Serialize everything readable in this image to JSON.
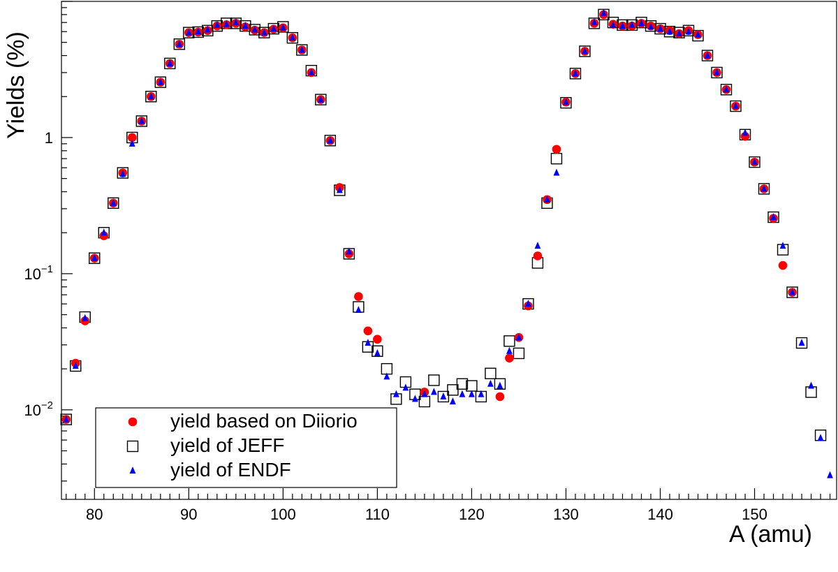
{
  "chart_data": {
    "type": "scatter",
    "title": "",
    "xlabel": "A (amu)",
    "ylabel": "Yields (%)",
    "xlim": [
      76.5,
      158.7
    ],
    "ylim": [
      0.0022,
      10
    ],
    "yscale": "log",
    "x_ticks": [
      80,
      90,
      100,
      110,
      120,
      130,
      140,
      150
    ],
    "y_ticks": [
      {
        "value": 0.01,
        "base": "10",
        "exp": "−2"
      },
      {
        "value": 0.1,
        "base": "10",
        "exp": "−1"
      },
      {
        "value": 1,
        "base": "1",
        "exp": ""
      }
    ],
    "grid": false,
    "legend_position": "bottom-left",
    "series": [
      {
        "name": "yield based on Diiorio",
        "marker": "circle",
        "color": "#ff0000",
        "points": [
          [
            77,
            0.0085
          ],
          [
            78,
            0.022
          ],
          [
            79,
            0.045
          ],
          [
            80,
            0.13
          ],
          [
            81,
            0.19
          ],
          [
            82,
            0.33
          ],
          [
            83,
            0.55
          ],
          [
            84,
            1.0
          ],
          [
            85,
            1.32
          ],
          [
            86,
            2.0
          ],
          [
            87,
            2.55
          ],
          [
            88,
            3.5
          ],
          [
            89,
            4.85
          ],
          [
            90,
            5.9
          ],
          [
            91,
            5.95
          ],
          [
            92,
            6.1
          ],
          [
            93,
            6.6
          ],
          [
            94,
            6.75
          ],
          [
            95,
            6.9
          ],
          [
            96,
            6.5
          ],
          [
            97,
            6.15
          ],
          [
            98,
            5.9
          ],
          [
            99,
            6.25
          ],
          [
            100,
            6.4
          ],
          [
            101,
            5.4
          ],
          [
            102,
            4.4
          ],
          [
            103,
            3.0
          ],
          [
            104,
            1.9
          ],
          [
            105,
            0.95
          ],
          [
            106,
            0.43
          ],
          [
            107,
            0.14
          ],
          [
            108,
            0.068
          ],
          [
            109,
            0.038
          ],
          [
            110,
            0.033
          ],
          [
            115,
            0.0135
          ],
          [
            123,
            0.0125
          ],
          [
            124,
            0.024
          ],
          [
            125,
            0.034
          ],
          [
            126,
            0.058
          ],
          [
            127,
            0.135
          ],
          [
            128,
            0.35
          ],
          [
            129,
            0.82
          ],
          [
            130,
            1.82
          ],
          [
            131,
            2.95
          ],
          [
            132,
            4.3
          ],
          [
            133,
            6.9
          ],
          [
            134,
            8.0
          ],
          [
            135,
            6.8
          ],
          [
            136,
            6.6
          ],
          [
            137,
            6.6
          ],
          [
            138,
            6.9
          ],
          [
            139,
            6.6
          ],
          [
            140,
            6.3
          ],
          [
            141,
            6.1
          ],
          [
            142,
            5.8
          ],
          [
            143,
            6.1
          ],
          [
            144,
            5.7
          ],
          [
            145,
            4.0
          ],
          [
            146,
            3.0
          ],
          [
            147,
            2.25
          ],
          [
            148,
            1.7
          ],
          [
            149,
            1.02
          ],
          [
            150,
            0.66
          ],
          [
            151,
            0.42
          ],
          [
            152,
            0.255
          ],
          [
            153,
            0.115
          ],
          [
            154,
            0.073
          ]
        ]
      },
      {
        "name": "yield of JEFF",
        "marker": "open-square",
        "color": "#000000",
        "points": [
          [
            77,
            0.0085
          ],
          [
            78,
            0.021
          ],
          [
            79,
            0.048
          ],
          [
            80,
            0.13
          ],
          [
            81,
            0.2
          ],
          [
            82,
            0.33
          ],
          [
            83,
            0.55
          ],
          [
            84,
            1.0
          ],
          [
            85,
            1.32
          ],
          [
            86,
            2.0
          ],
          [
            87,
            2.55
          ],
          [
            88,
            3.5
          ],
          [
            89,
            4.85
          ],
          [
            90,
            5.9
          ],
          [
            91,
            5.95
          ],
          [
            92,
            6.1
          ],
          [
            93,
            6.6
          ],
          [
            94,
            6.9
          ],
          [
            95,
            6.9
          ],
          [
            96,
            6.6
          ],
          [
            97,
            6.2
          ],
          [
            98,
            5.9
          ],
          [
            99,
            6.3
          ],
          [
            100,
            6.5
          ],
          [
            101,
            5.4
          ],
          [
            102,
            4.4
          ],
          [
            103,
            3.1
          ],
          [
            104,
            1.9
          ],
          [
            105,
            0.95
          ],
          [
            106,
            0.41
          ],
          [
            107,
            0.14
          ],
          [
            108,
            0.057
          ],
          [
            109,
            0.029
          ],
          [
            110,
            0.027
          ],
          [
            111,
            0.02
          ],
          [
            112,
            0.012
          ],
          [
            113,
            0.016
          ],
          [
            114,
            0.013
          ],
          [
            115,
            0.0115
          ],
          [
            116,
            0.0165
          ],
          [
            117,
            0.0125
          ],
          [
            118,
            0.014
          ],
          [
            119,
            0.0155
          ],
          [
            120,
            0.015
          ],
          [
            121,
            0.0125
          ],
          [
            122,
            0.0185
          ],
          [
            123,
            0.0155
          ],
          [
            124,
            0.032
          ],
          [
            125,
            0.026
          ],
          [
            126,
            0.06
          ],
          [
            127,
            0.12
          ],
          [
            128,
            0.33
          ],
          [
            129,
            0.7
          ],
          [
            130,
            1.8
          ],
          [
            131,
            2.95
          ],
          [
            132,
            4.3
          ],
          [
            133,
            6.9
          ],
          [
            134,
            8.0
          ],
          [
            135,
            7.0
          ],
          [
            136,
            6.7
          ],
          [
            137,
            6.7
          ],
          [
            138,
            7.0
          ],
          [
            139,
            6.6
          ],
          [
            140,
            6.3
          ],
          [
            141,
            6.0
          ],
          [
            142,
            5.9
          ],
          [
            143,
            6.1
          ],
          [
            144,
            5.6
          ],
          [
            145,
            4.0
          ],
          [
            146,
            3.0
          ],
          [
            147,
            2.25
          ],
          [
            148,
            1.7
          ],
          [
            149,
            1.05
          ],
          [
            150,
            0.66
          ],
          [
            151,
            0.42
          ],
          [
            152,
            0.26
          ],
          [
            153,
            0.15
          ],
          [
            154,
            0.073
          ],
          [
            155,
            0.031
          ],
          [
            156,
            0.0135
          ],
          [
            157,
            0.0065
          ]
        ]
      },
      {
        "name": "yield of ENDF",
        "marker": "triangle",
        "color": "#0000ff",
        "points": [
          [
            77,
            0.0085
          ],
          [
            78,
            0.021
          ],
          [
            79,
            0.047
          ],
          [
            80,
            0.13
          ],
          [
            81,
            0.2
          ],
          [
            82,
            0.33
          ],
          [
            83,
            0.54
          ],
          [
            84,
            0.9
          ],
          [
            85,
            1.32
          ],
          [
            86,
            2.0
          ],
          [
            87,
            2.55
          ],
          [
            88,
            3.5
          ],
          [
            89,
            4.85
          ],
          [
            90,
            5.9
          ],
          [
            91,
            6.0
          ],
          [
            92,
            6.2
          ],
          [
            93,
            6.7
          ],
          [
            94,
            6.8
          ],
          [
            95,
            7.0
          ],
          [
            96,
            6.6
          ],
          [
            97,
            6.2
          ],
          [
            98,
            5.9
          ],
          [
            99,
            6.3
          ],
          [
            100,
            6.4
          ],
          [
            101,
            5.4
          ],
          [
            102,
            4.4
          ],
          [
            103,
            3.0
          ],
          [
            104,
            1.9
          ],
          [
            105,
            0.95
          ],
          [
            106,
            0.41
          ],
          [
            107,
            0.145
          ],
          [
            108,
            0.054
          ],
          [
            109,
            0.031
          ],
          [
            110,
            0.026
          ],
          [
            111,
            0.0175
          ],
          [
            112,
            0.013
          ],
          [
            113,
            0.0145
          ],
          [
            114,
            0.012
          ],
          [
            115,
            0.013
          ],
          [
            116,
            0.0135
          ],
          [
            117,
            0.0125
          ],
          [
            118,
            0.0115
          ],
          [
            119,
            0.013
          ],
          [
            120,
            0.013
          ],
          [
            121,
            0.013
          ],
          [
            122,
            0.0155
          ],
          [
            123,
            0.015
          ],
          [
            124,
            0.027
          ],
          [
            125,
            0.034
          ],
          [
            126,
            0.06
          ],
          [
            127,
            0.16
          ],
          [
            128,
            0.35
          ],
          [
            129,
            0.55
          ],
          [
            130,
            1.82
          ],
          [
            131,
            2.95
          ],
          [
            132,
            4.3
          ],
          [
            133,
            7.0
          ],
          [
            134,
            8.2
          ],
          [
            135,
            6.7
          ],
          [
            136,
            6.6
          ],
          [
            137,
            6.7
          ],
          [
            138,
            6.9
          ],
          [
            139,
            6.5
          ],
          [
            140,
            6.3
          ],
          [
            141,
            6.0
          ],
          [
            142,
            5.8
          ],
          [
            143,
            6.0
          ],
          [
            144,
            5.7
          ],
          [
            145,
            4.0
          ],
          [
            146,
            3.0
          ],
          [
            147,
            2.25
          ],
          [
            148,
            1.7
          ],
          [
            149,
            1.08
          ],
          [
            150,
            0.66
          ],
          [
            151,
            0.42
          ],
          [
            152,
            0.26
          ],
          [
            153,
            0.16
          ],
          [
            154,
            0.073
          ],
          [
            155,
            0.031
          ],
          [
            156,
            0.015
          ],
          [
            157,
            0.0062
          ],
          [
            158,
            0.0033
          ]
        ]
      }
    ]
  }
}
